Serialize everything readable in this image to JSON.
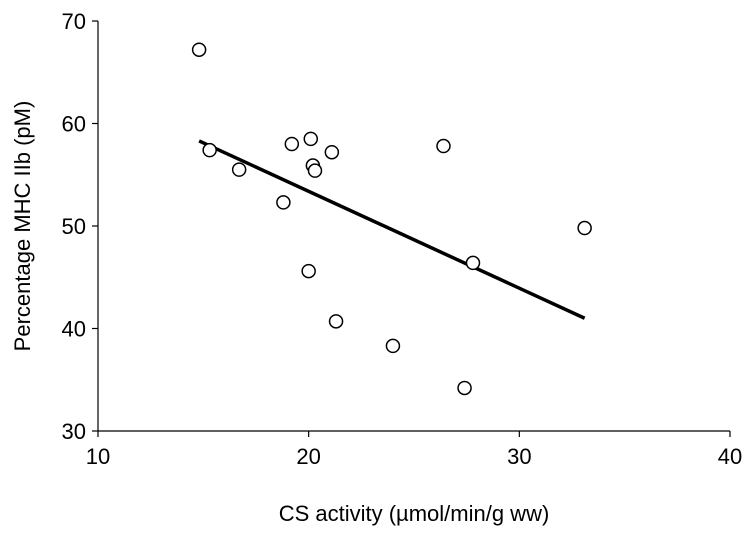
{
  "chart_data": {
    "type": "scatter",
    "title": "",
    "xlabel": "CS activity (µmol/min/g ww)",
    "ylabel": "Percentage MHC IIb (pM)",
    "xlim": [
      10,
      40
    ],
    "ylim": [
      30,
      70
    ],
    "xticks": [
      10,
      20,
      30,
      40
    ],
    "yticks": [
      30,
      40,
      50,
      60,
      70
    ],
    "grid": false,
    "legend": "none",
    "marker": "open-circle",
    "colors": {
      "marker_edge": "#000000",
      "marker_fill": "#ffffff",
      "trendline": "#000000",
      "axis": "#000000"
    },
    "points": [
      {
        "x": 14.8,
        "y": 67.2
      },
      {
        "x": 15.3,
        "y": 57.4
      },
      {
        "x": 16.7,
        "y": 55.5
      },
      {
        "x": 18.8,
        "y": 52.3
      },
      {
        "x": 19.2,
        "y": 58.0
      },
      {
        "x": 20.0,
        "y": 45.6
      },
      {
        "x": 20.1,
        "y": 58.5
      },
      {
        "x": 20.2,
        "y": 55.9
      },
      {
        "x": 20.3,
        "y": 55.4
      },
      {
        "x": 21.1,
        "y": 57.2
      },
      {
        "x": 21.3,
        "y": 40.7
      },
      {
        "x": 24.0,
        "y": 38.3
      },
      {
        "x": 26.4,
        "y": 57.8
      },
      {
        "x": 27.4,
        "y": 34.2
      },
      {
        "x": 27.8,
        "y": 46.4
      },
      {
        "x": 33.1,
        "y": 49.8
      }
    ],
    "trendline": {
      "type": "linear",
      "x": [
        14.8,
        33.1
      ],
      "y": [
        58.3,
        41.0
      ]
    }
  }
}
